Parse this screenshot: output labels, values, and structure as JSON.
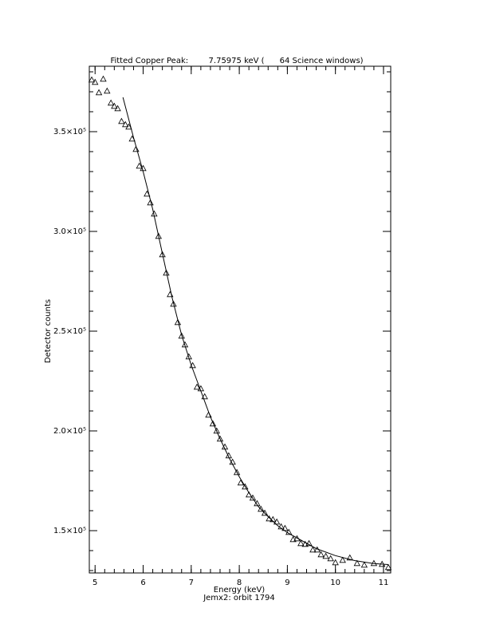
{
  "chart_data": {
    "type": "scatter",
    "title": "Fitted Copper Peak:        7.75975 keV (      64 Science windows)",
    "x_label": "Energy (keV)",
    "subtitle": "Jemx2: orbit 1794",
    "y_label": "Detector counts",
    "xlim": [
      4.88,
      11.15
    ],
    "ylim": [
      128800,
      382800
    ],
    "xticks": [
      5,
      6,
      7,
      8,
      9,
      10,
      11
    ],
    "yticks": [
      {
        "value": 150000,
        "label": "1.5×10⁵"
      },
      {
        "value": 200000,
        "label": "2.0×10⁵"
      },
      {
        "value": 250000,
        "label": "2.5×10⁵"
      },
      {
        "value": 300000,
        "label": "3.0×10⁵"
      },
      {
        "value": 350000,
        "label": "3.5×10⁵"
      }
    ],
    "color": "#000000",
    "x": [
      4.93,
      5.0,
      5.08,
      5.17,
      5.25,
      5.33,
      5.4,
      5.47,
      5.55,
      5.63,
      5.7,
      5.77,
      5.85,
      5.92,
      6.0,
      6.08,
      6.15,
      6.23,
      6.32,
      6.4,
      6.48,
      6.56,
      6.63,
      6.72,
      6.8,
      6.87,
      6.95,
      7.03,
      7.12,
      7.2,
      7.28,
      7.36,
      7.45,
      7.53,
      7.6,
      7.7,
      7.78,
      7.86,
      7.95,
      8.03,
      8.12,
      8.2,
      8.28,
      8.37,
      8.45,
      8.53,
      8.62,
      8.7,
      8.78,
      8.87,
      8.95,
      9.03,
      9.12,
      9.2,
      9.28,
      9.37,
      9.45,
      9.53,
      9.62,
      9.7,
      9.8,
      9.9,
      10.0,
      10.15,
      10.3,
      10.45,
      10.6,
      10.8,
      10.97,
      11.1
    ],
    "values": [
      376000,
      374800,
      369600,
      376400,
      370400,
      364400,
      362800,
      361600,
      355200,
      353600,
      352400,
      346400,
      341200,
      332800,
      331600,
      318800,
      314400,
      308800,
      297600,
      288400,
      279200,
      268400,
      263600,
      254400,
      247600,
      243200,
      237200,
      232800,
      222000,
      221200,
      217200,
      208000,
      203600,
      200000,
      196000,
      192000,
      187600,
      184400,
      179200,
      174000,
      172000,
      168000,
      166400,
      163600,
      160800,
      158800,
      156000,
      155600,
      154400,
      152000,
      151200,
      149200,
      145600,
      146000,
      143600,
      143200,
      143600,
      140400,
      140400,
      138000,
      137200,
      136000,
      134000,
      135200,
      136400,
      133600,
      132800,
      133600,
      133200,
      131600
    ],
    "fit": {
      "color": "#000000",
      "x": [
        5.58,
        5.8,
        6.0,
        6.2,
        6.4,
        6.6,
        6.8,
        7.0,
        7.2,
        7.4,
        7.6,
        7.8,
        8.0,
        8.2,
        8.4,
        8.6,
        8.8,
        9.0,
        9.3,
        9.6,
        10.0,
        10.4,
        10.8,
        11.1
      ],
      "values": [
        367200,
        347000,
        330000,
        311000,
        289000,
        267000,
        248000,
        233000,
        220000,
        207000,
        196000,
        186000,
        177000,
        169000,
        162000,
        157000,
        152500,
        149000,
        145000,
        141000,
        137500,
        135000,
        133500,
        133000
      ]
    }
  }
}
